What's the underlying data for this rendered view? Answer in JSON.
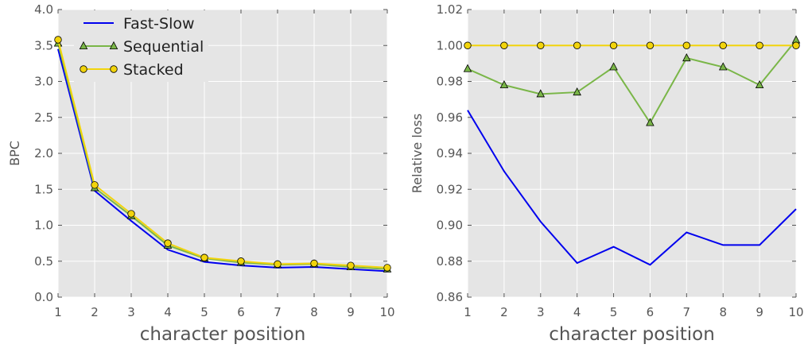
{
  "chart_data": [
    {
      "type": "line",
      "title": "",
      "xlabel": "character position",
      "ylabel": "BPC",
      "xlim": [
        1,
        10
      ],
      "ylim": [
        0.0,
        4.0
      ],
      "x": [
        1,
        2,
        3,
        4,
        5,
        6,
        7,
        8,
        9,
        10
      ],
      "xticks": [
        "1",
        "2",
        "3",
        "4",
        "5",
        "6",
        "7",
        "8",
        "9",
        "10"
      ],
      "yticks": [
        "0.0",
        "0.5",
        "1.0",
        "1.5",
        "2.0",
        "2.5",
        "3.0",
        "3.5",
        "4.0"
      ],
      "grid": true,
      "legend": "top-left",
      "series": [
        {
          "name": "Fast-Slow",
          "color": "#0000ee",
          "marker": "none",
          "values": [
            3.45,
            1.48,
            1.06,
            0.66,
            0.49,
            0.44,
            0.41,
            0.42,
            0.39,
            0.36
          ]
        },
        {
          "name": "Sequential",
          "color": "#7ab648",
          "marker": "triangle",
          "values": [
            3.53,
            1.52,
            1.13,
            0.72,
            0.54,
            0.48,
            0.45,
            0.46,
            0.42,
            0.39
          ]
        },
        {
          "name": "Stacked",
          "color": "#f2d40c",
          "marker": "circle",
          "values": [
            3.58,
            1.56,
            1.16,
            0.75,
            0.55,
            0.5,
            0.46,
            0.47,
            0.44,
            0.41
          ]
        }
      ]
    },
    {
      "type": "line",
      "title": "",
      "xlabel": "character position",
      "ylabel": "Relative loss",
      "xlim": [
        1,
        10
      ],
      "ylim": [
        0.86,
        1.02
      ],
      "x": [
        1,
        2,
        3,
        4,
        5,
        6,
        7,
        8,
        9,
        10
      ],
      "xticks": [
        "1",
        "2",
        "3",
        "4",
        "5",
        "6",
        "7",
        "8",
        "9",
        "10"
      ],
      "yticks": [
        "0.86",
        "0.88",
        "0.90",
        "0.92",
        "0.94",
        "0.96",
        "0.98",
        "1.00",
        "1.02"
      ],
      "grid": true,
      "legend": "none",
      "series": [
        {
          "name": "Fast-Slow",
          "color": "#0000ee",
          "marker": "none",
          "values": [
            0.964,
            0.93,
            0.902,
            0.879,
            0.888,
            0.878,
            0.896,
            0.889,
            0.889,
            0.909
          ]
        },
        {
          "name": "Sequential",
          "color": "#7ab648",
          "marker": "triangle",
          "values": [
            0.987,
            0.978,
            0.973,
            0.974,
            0.988,
            0.957,
            0.993,
            0.988,
            0.978,
            1.003
          ]
        },
        {
          "name": "Stacked",
          "color": "#f2d40c",
          "marker": "circle",
          "values": [
            1.0,
            1.0,
            1.0,
            1.0,
            1.0,
            1.0,
            1.0,
            1.0,
            1.0,
            1.0
          ]
        }
      ]
    }
  ]
}
